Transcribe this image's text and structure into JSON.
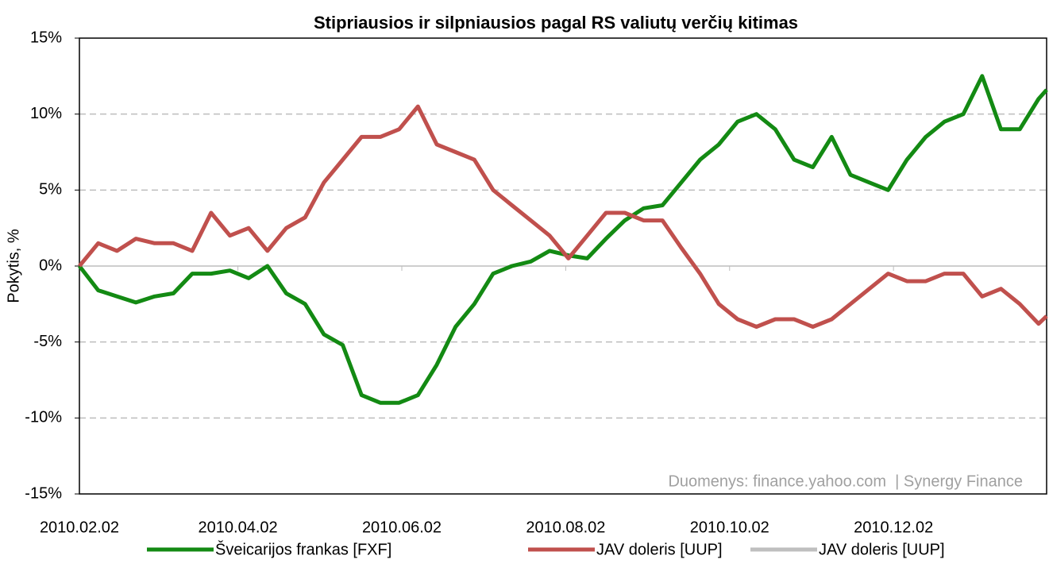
{
  "chart_data": {
    "type": "line",
    "title": "Stipriausios ir silpniausios pagal RS valiutų verčių kitimas",
    "y_label": "Pokytis, %",
    "annotation": "Duomenys: finance.yahoo.com  | Synergy Finance",
    "x": [
      "2010.02.02",
      "2010.02.09",
      "2010.02.16",
      "2010.02.23",
      "2010.03.02",
      "2010.03.09",
      "2010.03.16",
      "2010.03.23",
      "2010.03.30",
      "2010.04.06",
      "2010.04.13",
      "2010.04.20",
      "2010.04.27",
      "2010.05.04",
      "2010.05.11",
      "2010.05.18",
      "2010.05.25",
      "2010.06.01",
      "2010.06.08",
      "2010.06.15",
      "2010.06.22",
      "2010.06.29",
      "2010.07.06",
      "2010.07.13",
      "2010.07.20",
      "2010.07.27",
      "2010.08.03",
      "2010.08.10",
      "2010.08.17",
      "2010.08.24",
      "2010.08.31",
      "2010.09.07",
      "2010.09.14",
      "2010.09.21",
      "2010.09.28",
      "2010.10.05",
      "2010.10.12",
      "2010.10.19",
      "2010.10.26",
      "2010.11.02",
      "2010.11.09",
      "2010.11.16",
      "2010.11.23",
      "2010.11.30",
      "2010.12.07",
      "2010.12.14",
      "2010.12.21",
      "2010.12.28",
      "2011.01.04",
      "2011.01.11",
      "2011.01.18",
      "2011.01.25",
      "2011.01.28"
    ],
    "series": [
      {
        "name": "Šveicarijos frankas [FXF]",
        "color": "#138a13",
        "values": [
          0,
          -1.6,
          -2.0,
          -2.4,
          -2.0,
          -1.8,
          -0.5,
          -0.5,
          -0.3,
          -0.8,
          0.0,
          -1.8,
          -2.5,
          -4.5,
          -5.2,
          -8.5,
          -9.0,
          -9.0,
          -8.5,
          -6.5,
          -4.0,
          -2.5,
          -0.5,
          0.0,
          0.3,
          1.0,
          0.7,
          0.5,
          1.8,
          3.0,
          3.8,
          4.0,
          5.5,
          7.0,
          8.0,
          9.5,
          10.0,
          9.0,
          7.0,
          6.5,
          8.5,
          6.0,
          5.5,
          5.0,
          7.0,
          8.5,
          9.5,
          10.0,
          12.5,
          9.0,
          9.0,
          11.0,
          11.6
        ]
      },
      {
        "name": "JAV doleris [UUP]",
        "color": "#c0504d",
        "values": [
          0,
          1.5,
          1.0,
          1.8,
          1.5,
          1.5,
          1.0,
          3.5,
          2.0,
          2.5,
          1.0,
          2.5,
          3.2,
          5.5,
          7.0,
          8.5,
          8.5,
          9.0,
          10.5,
          8.0,
          7.5,
          7.0,
          5.0,
          4.0,
          3.0,
          2.0,
          0.5,
          2.0,
          3.5,
          3.5,
          3.0,
          3.0,
          1.2,
          -0.5,
          -2.5,
          -3.5,
          -4.0,
          -3.5,
          -3.5,
          -4.0,
          -3.5,
          -2.5,
          -1.5,
          -0.5,
          -1.0,
          -1.0,
          -0.5,
          -0.5,
          -2.0,
          -1.5,
          -2.5,
          -3.8,
          -3.3
        ]
      },
      {
        "name": "JAV doleris [UUP]",
        "color": "#bfbfbf",
        "values": [
          null,
          null,
          null,
          null,
          null,
          null,
          null,
          null,
          null,
          null,
          null,
          null,
          null,
          null,
          null,
          null,
          null,
          null,
          null,
          null,
          null,
          null,
          null,
          null,
          null,
          null,
          null,
          null,
          null,
          null,
          null,
          null,
          null,
          null,
          null,
          null,
          null,
          null,
          null,
          null,
          null,
          null,
          null,
          null,
          null,
          null,
          null,
          null,
          null,
          null,
          null,
          null,
          null
        ]
      }
    ],
    "xlim": [
      "2010.02.02",
      "2011.01.28"
    ],
    "xticks": [
      "2010.02.02",
      "2010.04.02",
      "2010.06.02",
      "2010.08.02",
      "2010.10.02",
      "2010.12.02"
    ],
    "ylim": [
      -15,
      15
    ],
    "yticks": [
      {
        "value": -15,
        "label": "-15%"
      },
      {
        "value": -10,
        "label": "-10%"
      },
      {
        "value": -5,
        "label": "-5%"
      },
      {
        "value": 0,
        "label": "0%"
      },
      {
        "value": 5,
        "label": "5%"
      },
      {
        "value": 10,
        "label": "10%"
      },
      {
        "value": 15,
        "label": "15%"
      }
    ],
    "grid": true,
    "legend": "bottom"
  }
}
